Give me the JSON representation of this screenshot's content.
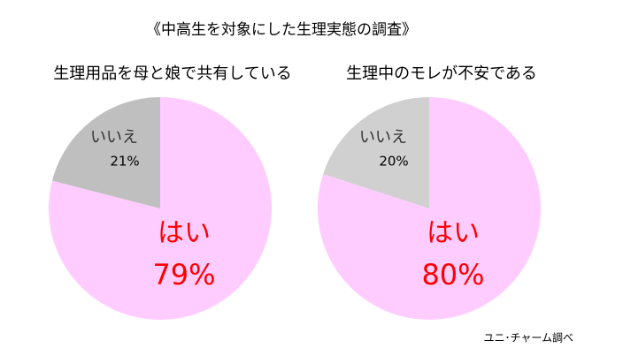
{
  "title": "《中高生を対象にした生理実態の調査》",
  "source": "ユニ･チャーム調べ",
  "chart_data": [
    {
      "type": "pie",
      "title": "生理用品を母と娘で共有している",
      "categories": [
        "はい",
        "いいえ"
      ],
      "values": [
        79,
        21
      ],
      "value_labels": [
        "79%",
        "21%"
      ],
      "colors": [
        "#ffccff",
        "#bfbfbf"
      ]
    },
    {
      "type": "pie",
      "title": "生理中のモレが不安である",
      "categories": [
        "はい",
        "いいえ"
      ],
      "values": [
        80,
        20
      ],
      "value_labels": [
        "80%",
        "20%"
      ],
      "colors": [
        "#ffccff",
        "#d0d0d0"
      ]
    }
  ]
}
